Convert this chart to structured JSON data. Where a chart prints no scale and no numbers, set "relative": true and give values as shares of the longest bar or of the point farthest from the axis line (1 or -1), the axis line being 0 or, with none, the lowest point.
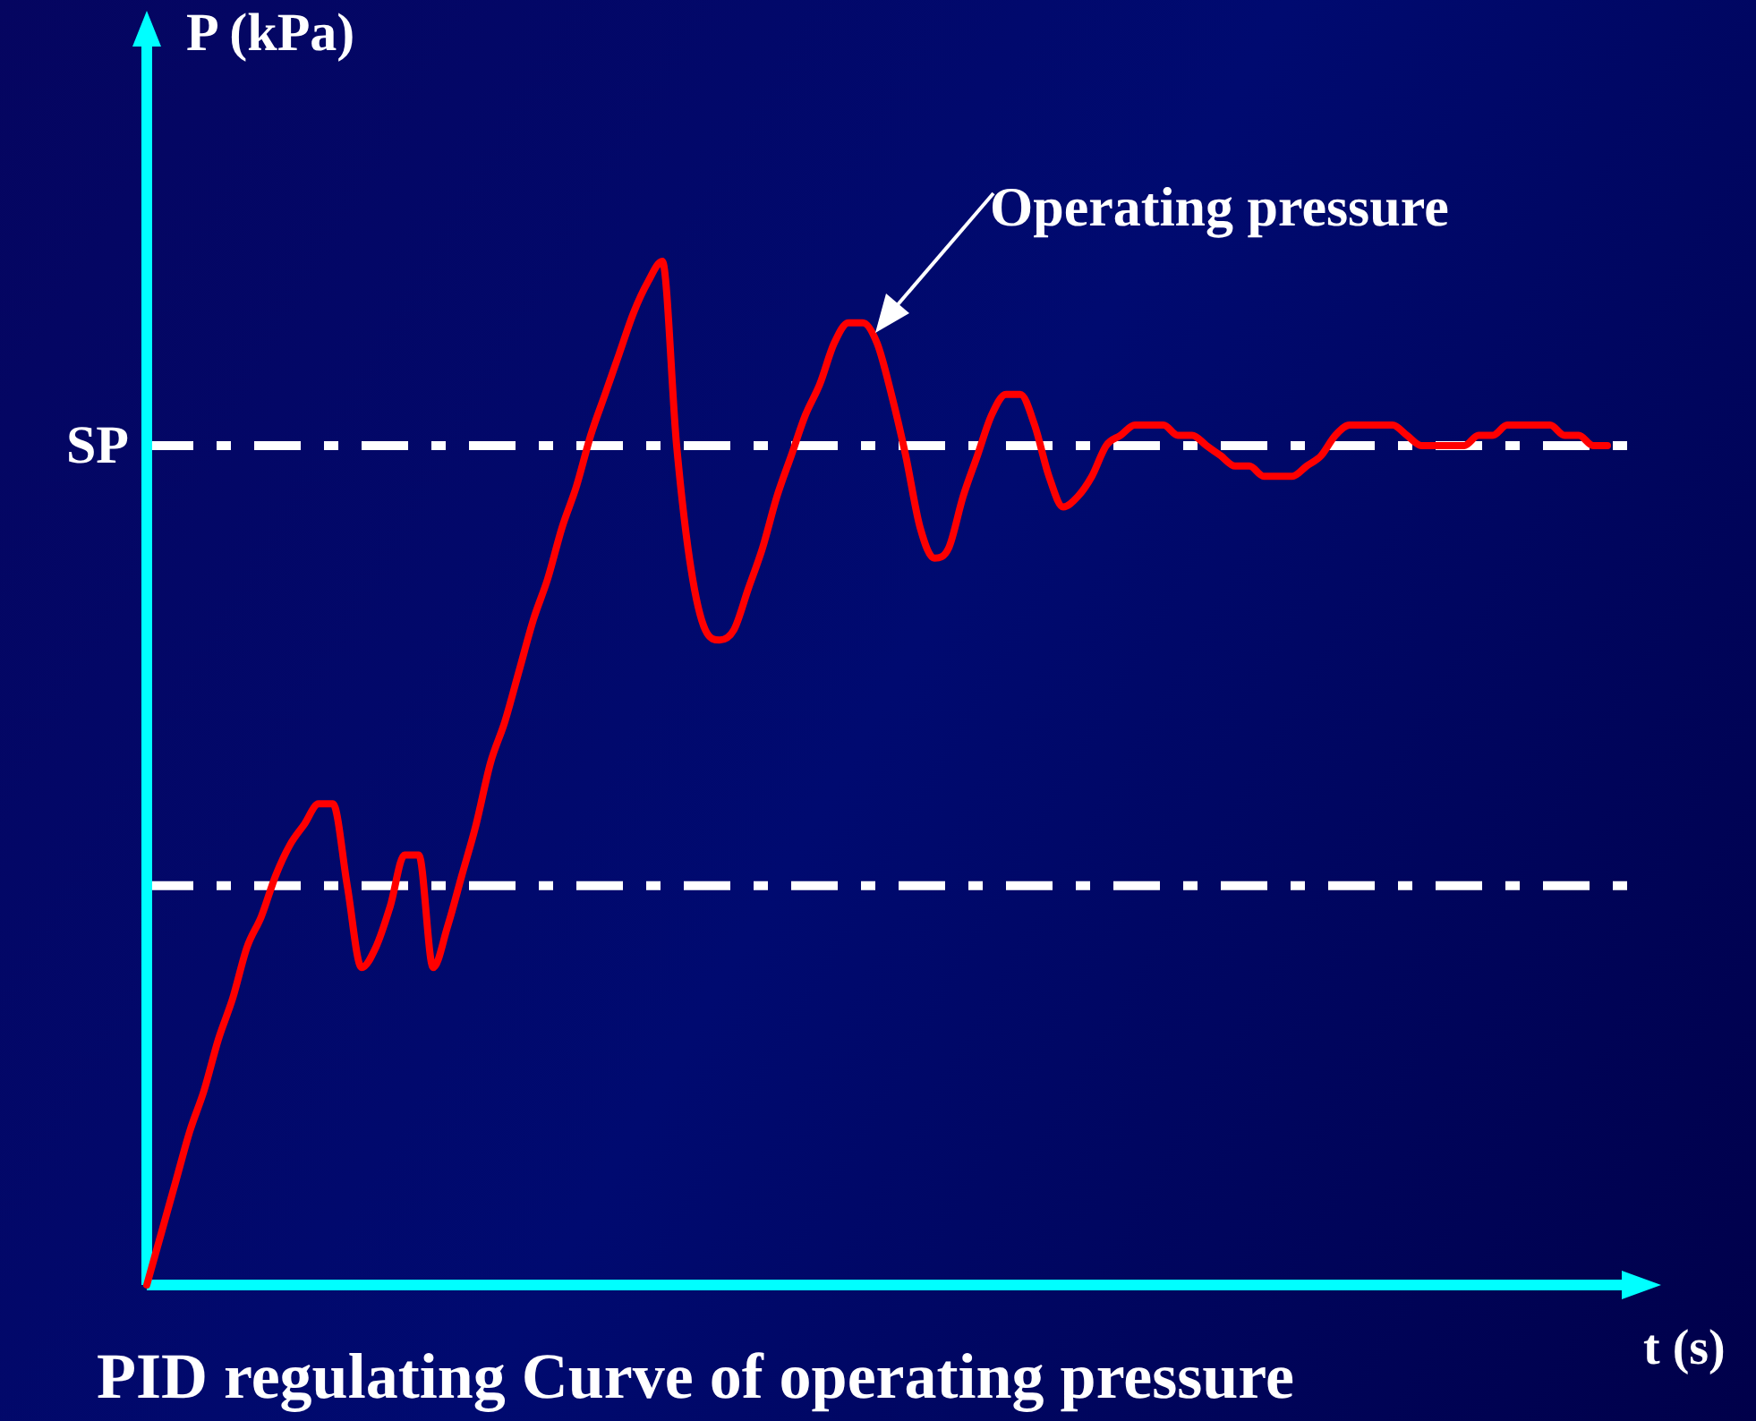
{
  "chart_data": {
    "type": "line",
    "title": "PID regulating Curve of operating pressure",
    "xlabel": "t (s)",
    "ylabel": "P (kPa)",
    "relative": true,
    "tick_labels": false,
    "legend": false,
    "marker": "none",
    "annotations": [
      "Operating pressure"
    ],
    "ref_lines": [
      {
        "axis": "y",
        "value": 0.82,
        "label": "SP",
        "color": "#ffffff",
        "line_style": "dashed"
      },
      {
        "axis": "y",
        "value": 0.39,
        "color": "#ffffff",
        "line_style": "dashed"
      }
    ],
    "categories": [
      null,
      null,
      null,
      null,
      null,
      null,
      null,
      null,
      null,
      null,
      null,
      null,
      null,
      null,
      null,
      null,
      null,
      null,
      null,
      null,
      null,
      null,
      null,
      null,
      null,
      null,
      null,
      null,
      null,
      null,
      null,
      null,
      null,
      null,
      null,
      null,
      null,
      null,
      null,
      null,
      null,
      null,
      null,
      null,
      null,
      null,
      null,
      null,
      null,
      null,
      null,
      null,
      null,
      null,
      null,
      null,
      null,
      null,
      null,
      null,
      null,
      null,
      null,
      null,
      null,
      null,
      null,
      null,
      null,
      null,
      null,
      null,
      null,
      null,
      null,
      null,
      null,
      null,
      null,
      null,
      null,
      null,
      null,
      null,
      null,
      null,
      null,
      null,
      null,
      null,
      null,
      null,
      null,
      null,
      null,
      null,
      null,
      null,
      null,
      null,
      null,
      null,
      null
    ],
    "series": [
      {
        "color": "#ff0000",
        "line_style": "solid",
        "values": [
          0,
          0.05,
          0.1,
          0.15,
          0.19,
          0.24,
          0.28,
          0.33,
          0.36,
          0.4,
          0.43,
          0.45,
          0.47,
          0.47,
          0.39,
          0.31,
          0.33,
          0.37,
          0.42,
          0.42,
          0.31,
          0.35,
          0.4,
          0.45,
          0.51,
          0.55,
          0.6,
          0.65,
          0.69,
          0.74,
          0.78,
          0.83,
          0.87,
          0.91,
          0.95,
          0.98,
          1.0,
          0.82,
          0.7,
          0.64,
          0.63,
          0.64,
          0.68,
          0.72,
          0.77,
          0.81,
          0.85,
          0.88,
          0.92,
          0.94,
          0.94,
          0.92,
          0.87,
          0.81,
          0.74,
          0.71,
          0.72,
          0.77,
          0.81,
          0.85,
          0.87,
          0.87,
          0.84,
          0.79,
          0.76,
          0.77,
          0.79,
          0.82,
          0.83,
          0.84,
          0.84,
          0.84,
          0.83,
          0.83,
          0.82,
          0.81,
          0.8,
          0.8,
          0.79,
          0.79,
          0.79,
          0.8,
          0.81,
          0.83,
          0.84,
          0.84,
          0.84,
          0.84,
          0.83,
          0.82,
          0.82,
          0.82,
          0.82,
          0.83,
          0.83,
          0.84,
          0.84,
          0.84,
          0.84,
          0.83,
          0.83,
          0.82,
          0.82
        ]
      }
    ]
  }
}
